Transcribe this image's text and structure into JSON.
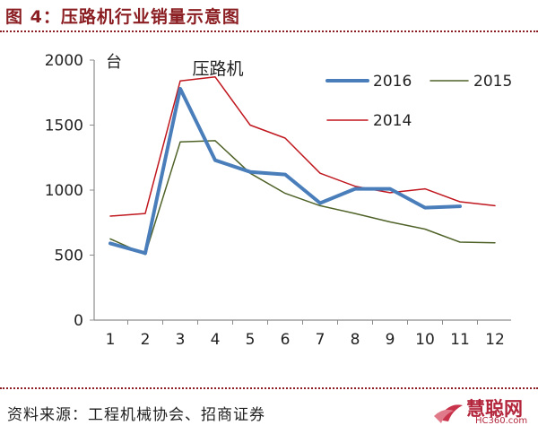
{
  "figure": {
    "title": "图 4：压路机行业销量示意图",
    "source": "资料来源：工程机械协会、招商证券"
  },
  "watermark": {
    "text": "慧聪网",
    "subtext": "HC360.com"
  },
  "chart_data": {
    "type": "line",
    "title": "压路机",
    "ylabel": "台",
    "xlabel": "",
    "x": [
      1,
      2,
      3,
      4,
      5,
      6,
      7,
      8,
      9,
      10,
      11,
      12
    ],
    "ylim": [
      0,
      2000
    ],
    "yticks": [
      0,
      500,
      1000,
      1500,
      2000
    ],
    "grid": false,
    "legend_position": "top-right",
    "series": [
      {
        "name": "2016",
        "color": "#4a7ebb",
        "width": 4,
        "values": [
          590,
          515,
          1780,
          1230,
          1140,
          1120,
          900,
          1010,
          1010,
          865,
          875,
          null
        ]
      },
      {
        "name": "2015",
        "color": "#4f6228",
        "width": 1.5,
        "values": [
          625,
          505,
          1370,
          1380,
          1130,
          975,
          880,
          820,
          755,
          700,
          600,
          595
        ]
      },
      {
        "name": "2014",
        "color": "#c0171e",
        "width": 1.5,
        "values": [
          800,
          820,
          1840,
          1870,
          1500,
          1400,
          1130,
          1030,
          980,
          1010,
          910,
          880
        ]
      }
    ]
  }
}
